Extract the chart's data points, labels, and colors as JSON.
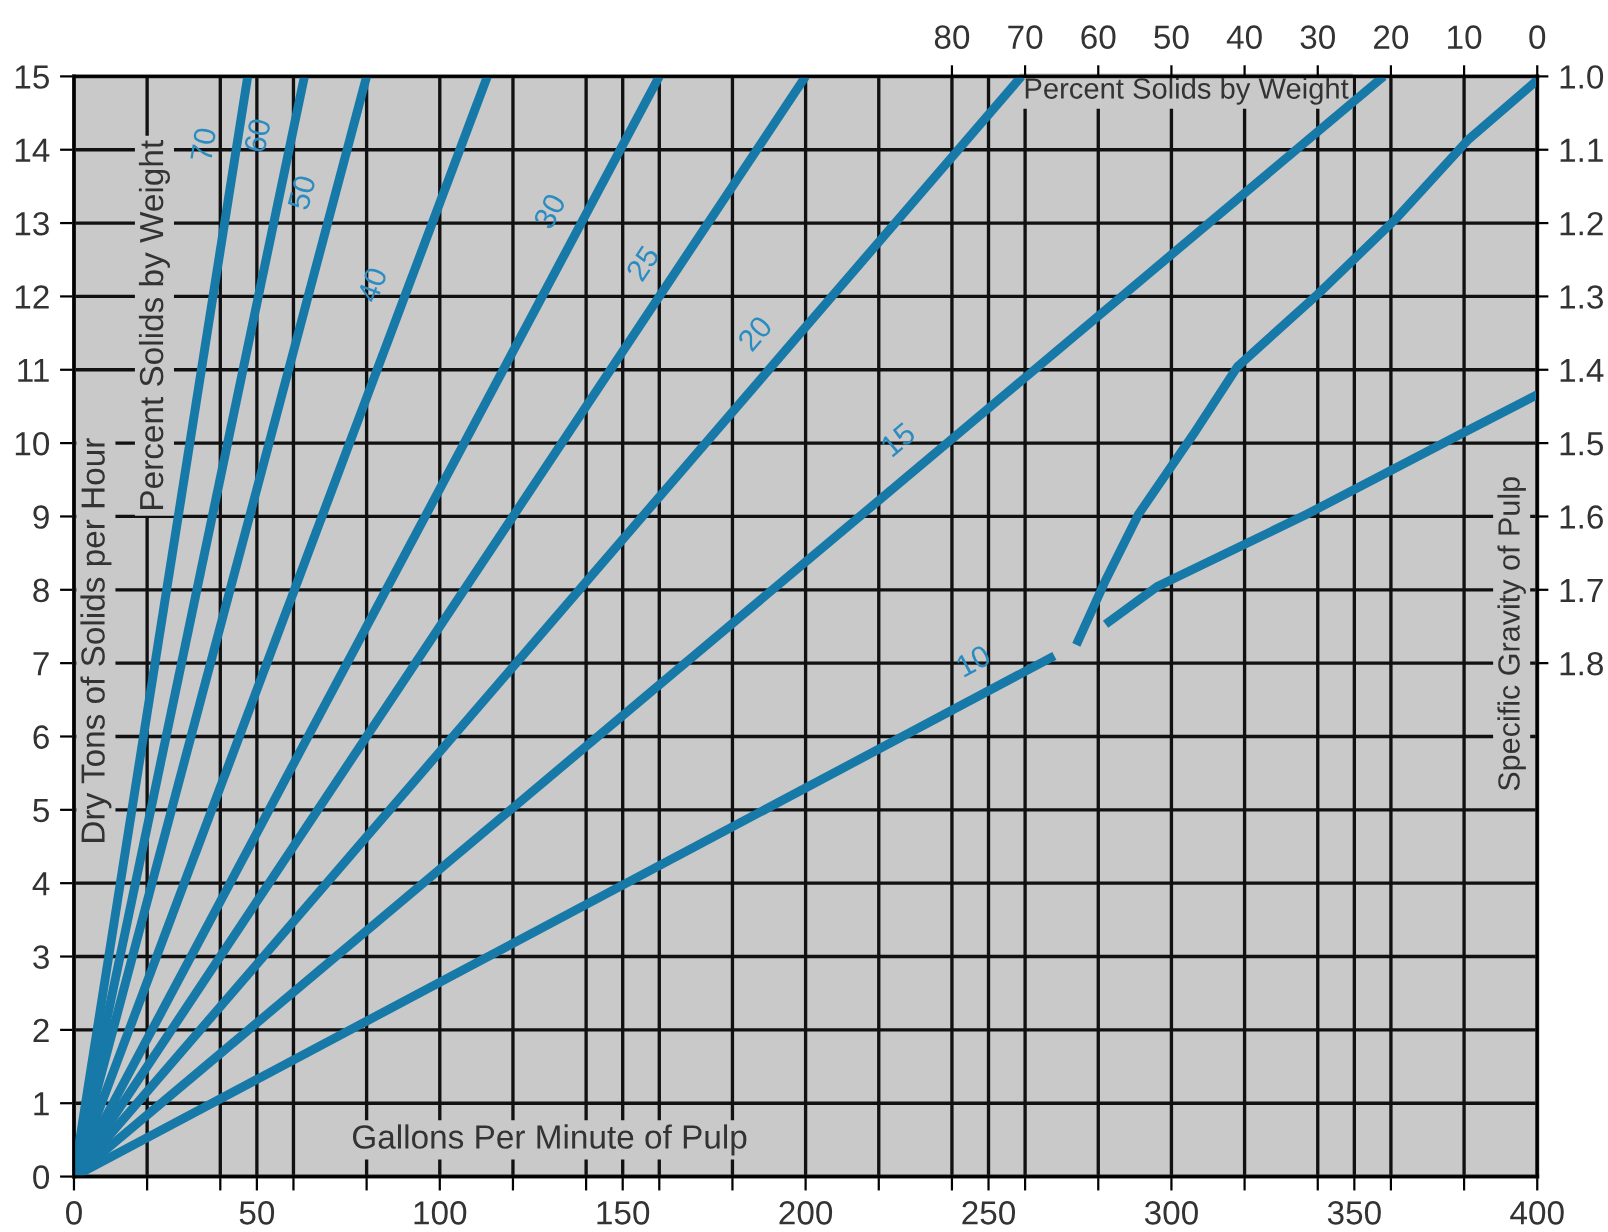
{
  "chart_data": {
    "type": "line",
    "xlabel": "Gallons Per Minute of Pulp",
    "ylabel": "Dry Tons of Solids per Hour",
    "x2label": "Percent Solids by Weight",
    "y2label": "Specific Gravity of Pulp",
    "xlim": [
      0,
      400
    ],
    "ylim": [
      0,
      15
    ],
    "xticks": [
      0,
      {
        "value": 20,
        "label": null
      },
      {
        "value": 40,
        "label": null
      },
      50,
      {
        "value": 60,
        "label": null
      },
      {
        "value": 80,
        "label": null
      },
      100,
      {
        "value": 120,
        "label": null
      },
      {
        "value": 140,
        "label": null
      },
      150,
      {
        "value": 160,
        "label": null
      },
      {
        "value": 180,
        "label": null
      },
      200,
      {
        "value": 220,
        "label": null
      },
      {
        "value": 240,
        "label": null
      },
      250,
      {
        "value": 260,
        "label": null
      },
      {
        "value": 280,
        "label": null
      },
      300,
      {
        "value": 320,
        "label": null
      },
      {
        "value": 340,
        "label": null
      },
      350,
      {
        "value": 360,
        "label": null
      },
      {
        "value": 380,
        "label": null
      },
      400
    ],
    "yticks": [
      0,
      1,
      2,
      3,
      4,
      5,
      6,
      7,
      8,
      9,
      10,
      11,
      12,
      13,
      14,
      15
    ],
    "x2lim": [
      200,
      0
    ],
    "x2ticks": [
      80,
      70,
      60,
      50,
      40,
      30,
      20,
      10,
      0
    ],
    "y2lim": [
      2.5,
      1.0
    ],
    "y2ticks": [
      {
        "value": 1.0,
        "label": "1.0"
      },
      1.1,
      1.2,
      1.3,
      1.4,
      1.5,
      1.6,
      1.7,
      1.8
    ],
    "grid": true,
    "marker": "none",
    "line_style": "solid",
    "series": [
      {
        "color": "#1679a8",
        "x": [
          0,
          47.5
        ],
        "values": [
          0,
          15
        ]
      },
      {
        "color": "#1679a8",
        "x": [
          0,
          63
        ],
        "values": [
          0,
          15
        ]
      },
      {
        "color": "#1679a8",
        "x": [
          0,
          80
        ],
        "values": [
          0,
          15
        ]
      },
      {
        "color": "#1679a8",
        "x": [
          0,
          113
        ],
        "values": [
          0,
          15
        ]
      },
      {
        "color": "#1679a8",
        "x": [
          0,
          160
        ],
        "values": [
          0,
          15
        ]
      },
      {
        "color": "#1679a8",
        "x": [
          0,
          200
        ],
        "values": [
          0,
          15
        ]
      },
      {
        "color": "#1679a8",
        "x": [
          0,
          259
        ],
        "values": [
          0,
          15
        ]
      },
      {
        "color": "#1679a8",
        "x": [
          0,
          358
        ],
        "values": [
          0,
          15
        ]
      },
      {
        "color": "#1679a8",
        "x": [
          0,
          268
        ],
        "values": [
          0,
          7.1
        ]
      },
      {
        "color": "#1679a8",
        "x": [
          274,
          282,
          291,
          306,
          318,
          340,
          361,
          381,
          400
        ],
        "values": [
          7.25,
          8.13,
          9.03,
          10.12,
          11.04,
          12.03,
          13.04,
          14.13,
          14.95
        ]
      },
      {
        "color": "#1679a8",
        "x": [
          282,
          296,
          337,
          379,
          400
        ],
        "values": [
          7.53,
          8.04,
          9.03,
          10.12,
          10.66
        ]
      }
    ],
    "annotations": [
      {
        "text": "70",
        "x": 44.3,
        "y": 14
      },
      {
        "text": "60",
        "x": 59,
        "y": 14.1
      },
      {
        "text": "50",
        "x": 71,
        "y": 13.3
      },
      {
        "text": "40",
        "x": 90,
        "y": 12
      },
      {
        "text": "30",
        "x": 138,
        "y": 12.95
      },
      {
        "text": "25",
        "x": 163,
        "y": 12.2
      },
      {
        "text": "20",
        "x": 193,
        "y": 11.2
      },
      {
        "text": "15",
        "x": 231,
        "y": 9.7
      },
      {
        "text": "10",
        "x": 250,
        "y": 6.63
      },
      "Percent Solids by Weight"
    ]
  }
}
